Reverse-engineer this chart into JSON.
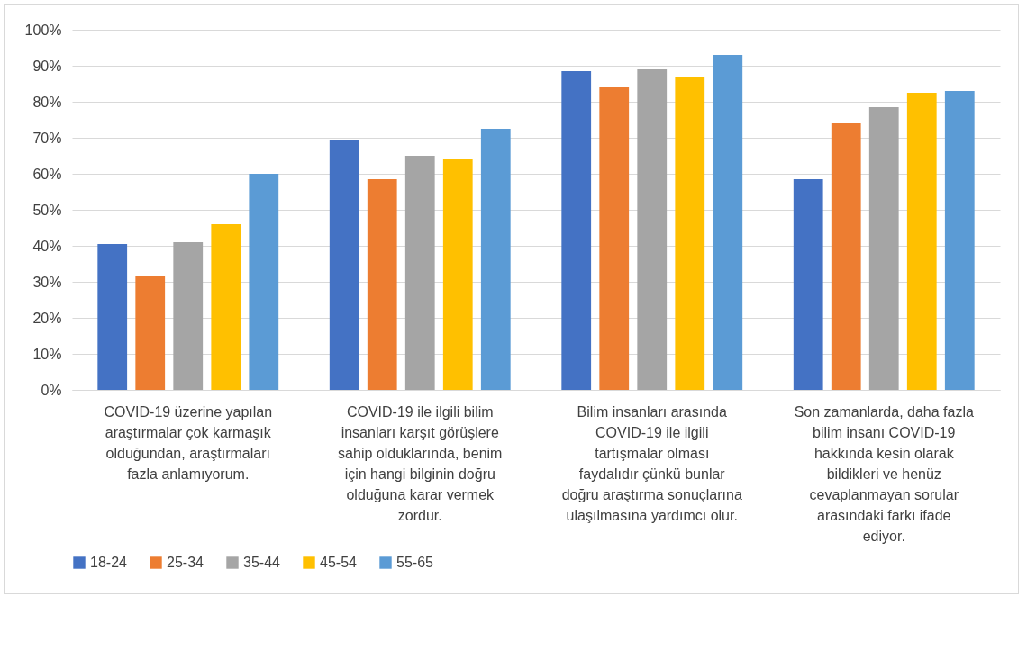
{
  "chart_data": {
    "type": "bar",
    "categories": [
      "COVID-19 üzerine yapılan araştırmalar çok karmaşık olduğundan, araştırmaları fazla anlamıyorum.",
      "COVID-19 ile ilgili bilim insanları karşıt görüşlere sahip olduklarında, benim için hangi bilginin doğru olduğuna karar vermek zordur.",
      "Bilim insanları arasında COVID-19 ile ilgili tartışmalar olması faydalıdır çünkü bunlar doğru araştırma sonuçlarına ulaşılmasına yardımcı olur.",
      "Son zamanlarda, daha fazla bilim insanı COVID-19 hakkında kesin olarak bildikleri ve henüz cevaplanmayan sorular arasındaki farkı ifade ediyor."
    ],
    "series": [
      {
        "name": "18-24",
        "color": "#4472c4",
        "values": [
          40.5,
          69.5,
          88.5,
          58.5
        ]
      },
      {
        "name": "25-34",
        "color": "#ed7d31",
        "values": [
          31.5,
          58.5,
          84,
          74
        ]
      },
      {
        "name": "35-44",
        "color": "#a5a5a5",
        "values": [
          41,
          65,
          89,
          78.5
        ]
      },
      {
        "name": "45-54",
        "color": "#ffc000",
        "values": [
          46,
          64,
          87,
          82.5
        ]
      },
      {
        "name": "55-65",
        "color": "#5b9bd5",
        "values": [
          60,
          72.5,
          93,
          83
        ]
      }
    ],
    "ylim": [
      0,
      100
    ],
    "yticks": [
      {
        "value": 0,
        "label": "0%"
      },
      {
        "value": 10,
        "label": "10%"
      },
      {
        "value": 20,
        "label": "20%"
      },
      {
        "value": 30,
        "label": "30%"
      },
      {
        "value": 40,
        "label": "40%"
      },
      {
        "value": 50,
        "label": "50%"
      },
      {
        "value": 60,
        "label": "60%"
      },
      {
        "value": 70,
        "label": "70%"
      },
      {
        "value": 80,
        "label": "80%"
      },
      {
        "value": 90,
        "label": "90%"
      },
      {
        "value": 100,
        "label": "100%"
      }
    ],
    "grid": "y",
    "legend": "bottom"
  }
}
